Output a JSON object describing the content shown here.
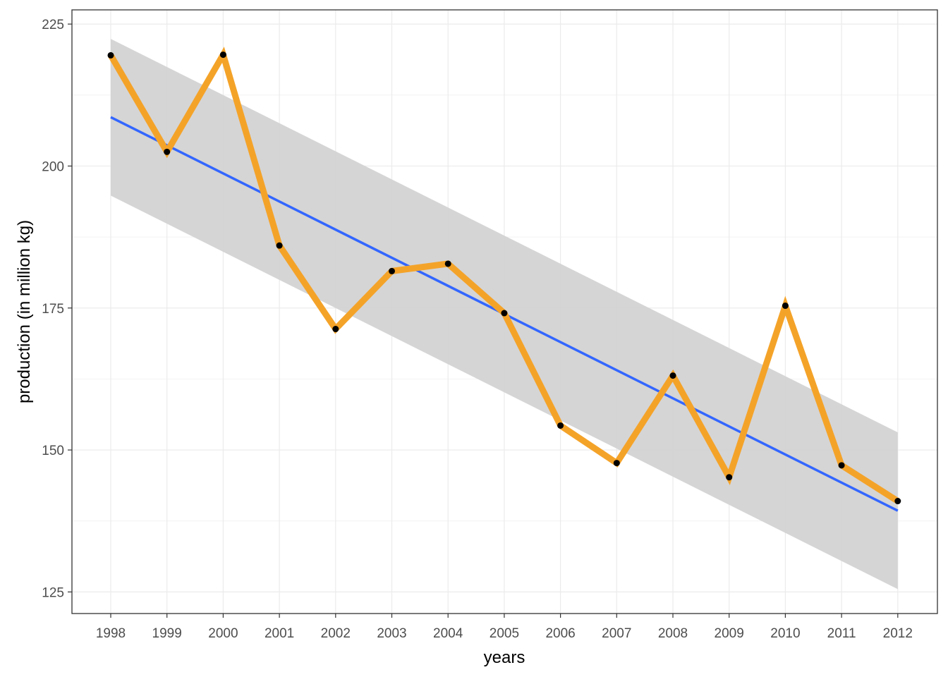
{
  "chart_data": {
    "type": "line",
    "title": "",
    "xlabel": "years",
    "ylabel": "production (in million kg)",
    "categories": [
      "1998",
      "1999",
      "2000",
      "2001",
      "2002",
      "2003",
      "2004",
      "2005",
      "2006",
      "2007",
      "2008",
      "2009",
      "2010",
      "2011",
      "2012"
    ],
    "series": [
      {
        "values": [
          219.5,
          202.5,
          219.6,
          186.0,
          171.3,
          181.5,
          182.8,
          174.1,
          154.3,
          147.7,
          163.1,
          145.2,
          175.4,
          147.3,
          141.0
        ],
        "color": "#f4a329",
        "markers": "#000000"
      }
    ],
    "trend": {
      "method": "linear regression",
      "start": 208.6,
      "end": 139.3,
      "color": "#3366ff",
      "band_color": "#d3d3d3",
      "band_lower_start": 194.8,
      "band_upper_start": 222.4,
      "band_lower_end": 125.5,
      "band_upper_end": 153.1
    },
    "yticks": [
      125,
      150,
      175,
      200,
      225
    ],
    "ylim": [
      121.2,
      227.5
    ],
    "grid": true,
    "theme": "bw",
    "legend": "none"
  }
}
